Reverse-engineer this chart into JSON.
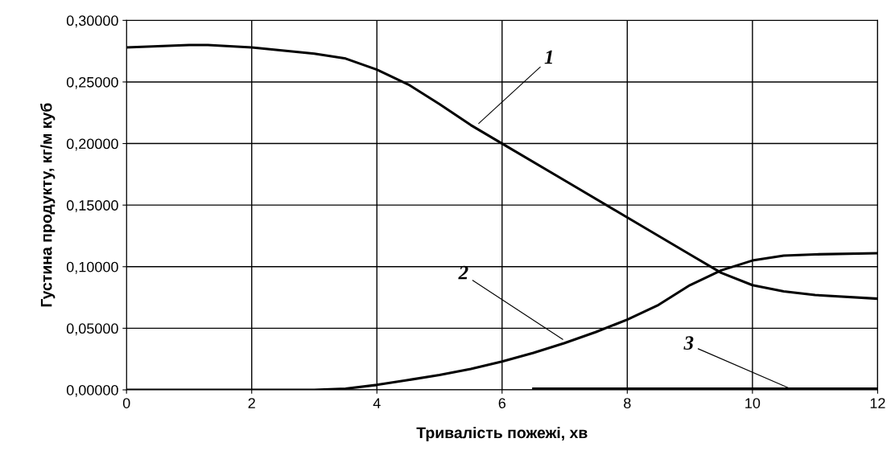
{
  "chart_data": {
    "type": "line",
    "xlabel": "Тривалість пожежі, хв",
    "ylabel": "Густина продукту, кг/м куб",
    "xlim": [
      0,
      12
    ],
    "xticks": [
      0,
      2,
      4,
      6,
      8,
      10,
      12
    ],
    "ylim": [
      0,
      0.3
    ],
    "yticks": [
      {
        "value": 0,
        "label": "0,00000"
      },
      {
        "value": 0.05,
        "label": "0,05000"
      },
      {
        "value": 0.1,
        "label": "0,10000"
      },
      {
        "value": 0.15,
        "label": "0,15000"
      },
      {
        "value": 0.2,
        "label": "0,20000"
      },
      {
        "value": 0.25,
        "label": "0,25000"
      },
      {
        "value": 0.3,
        "label": "0,30000"
      }
    ],
    "grid": true,
    "marker": "none",
    "line_style": "solid",
    "series": [
      {
        "color": "#000000",
        "x": [
          0,
          1,
          1.3,
          2,
          3,
          3.5,
          4,
          4.5,
          5,
          5.5,
          6,
          7,
          8,
          9,
          9.5,
          10,
          10.5,
          11,
          12
        ],
        "values": [
          0.278,
          0.28,
          0.28,
          0.278,
          0.273,
          0.269,
          0.26,
          0.248,
          0.232,
          0.215,
          0.2,
          0.17,
          0.14,
          0.11,
          0.095,
          0.085,
          0.08,
          0.077,
          0.074
        ]
      },
      {
        "color": "#000000",
        "x": [
          0,
          3,
          3.5,
          4,
          4.5,
          5,
          5.5,
          6,
          6.5,
          7,
          7.5,
          8,
          8.5,
          9,
          9.5,
          10,
          10.5,
          11,
          12
        ],
        "values": [
          0,
          0,
          0.001,
          0.004,
          0.008,
          0.012,
          0.017,
          0.023,
          0.03,
          0.038,
          0.047,
          0.057,
          0.069,
          0.085,
          0.097,
          0.105,
          0.109,
          0.11,
          0.111
        ]
      },
      {
        "color": "#000000",
        "x": [
          6.5,
          8,
          10,
          12
        ],
        "values": [
          0.001,
          0.001,
          0.001,
          0.001
        ]
      }
    ],
    "annotations": [
      {
        "text": "1",
        "x": 5.6,
        "y": 0.215
      },
      {
        "text": "2",
        "x": 7.0,
        "y": 0.04
      },
      {
        "text": "3",
        "x": 10.6,
        "y": 0.001
      }
    ]
  }
}
